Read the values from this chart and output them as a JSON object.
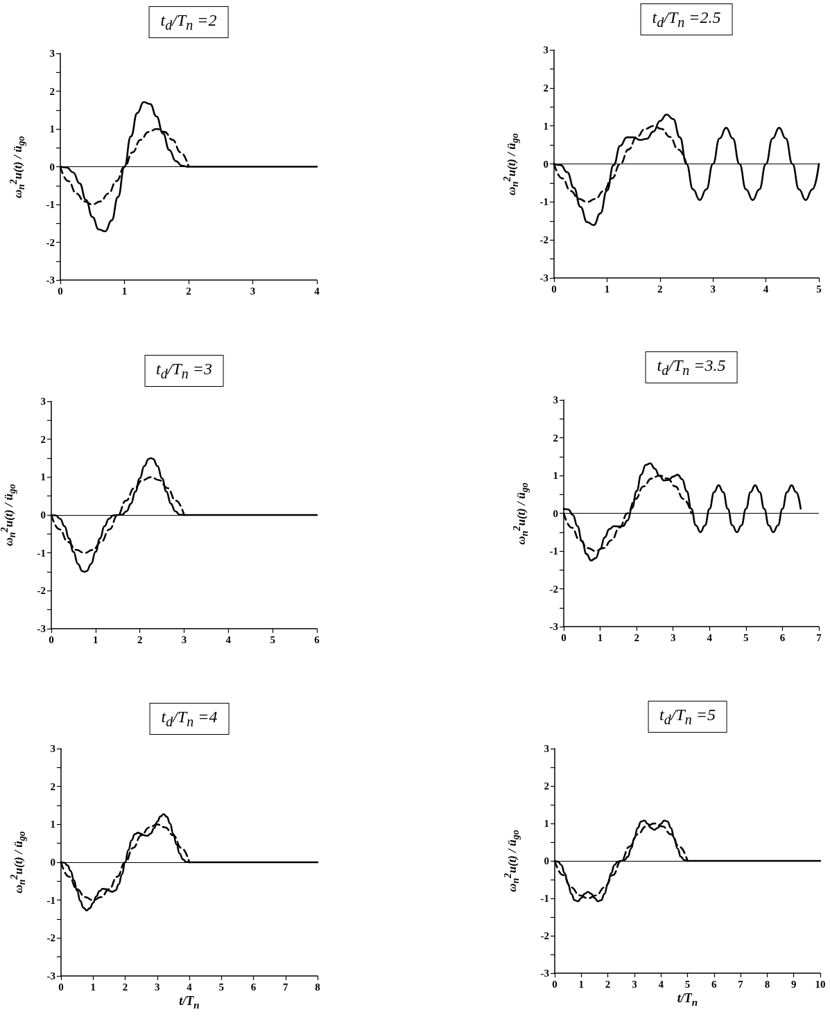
{
  "chart_data": [
    {
      "type": "line",
      "title": "t$_{d}$/T$_{n}$ =2",
      "ylabel": "ω$_{n}$$^{2}$u(t) / ü$_{go}$",
      "xlim": [
        0,
        4
      ],
      "xticks": [
        0,
        1,
        2,
        3,
        4
      ],
      "ylim": [
        -3,
        3
      ],
      "yticks": [
        -3,
        {
          "value": -2.5,
          "label": null
        },
        -2,
        {
          "value": -1.5,
          "label": null
        },
        -1,
        {
          "value": -0.5,
          "label": null
        },
        0,
        {
          "value": 0.5,
          "label": null
        },
        1,
        {
          "value": 1.5,
          "label": null
        },
        2,
        {
          "value": 2.5,
          "label": null
        },
        3
      ],
      "marker": "none",
      "ref_lines": [
        {
          "axis": "y",
          "value": 0
        }
      ],
      "series": [
        {
          "color": "#000000",
          "line_style": "solid",
          "x": [
            0,
            0.1,
            0.2,
            0.3,
            0.4,
            0.5,
            0.6,
            0.7,
            0.8,
            0.9,
            1,
            1.1,
            1.2,
            1.3,
            1.4,
            1.5,
            1.6,
            1.7,
            1.8,
            1.9,
            2,
            4
          ],
          "values": [
            0,
            -0.02,
            -0.15,
            -0.44,
            -0.88,
            -1.33,
            -1.66,
            -1.71,
            -1.42,
            -0.8,
            0,
            0.8,
            1.42,
            1.71,
            1.66,
            1.33,
            0.88,
            0.44,
            0.15,
            0.02,
            0,
            0
          ]
        },
        {
          "color": "#000000",
          "line_style": "dashed",
          "x": [
            0,
            0.125,
            0.25,
            0.375,
            0.5,
            0.625,
            0.75,
            0.875,
            1,
            1.125,
            1.25,
            1.375,
            1.5,
            1.625,
            1.75,
            1.875,
            2
          ],
          "values": [
            0,
            -0.38,
            -0.71,
            -0.92,
            -1,
            -0.92,
            -0.71,
            -0.38,
            0,
            0.38,
            0.71,
            0.92,
            1,
            0.92,
            0.71,
            0.38,
            0
          ]
        }
      ]
    },
    {
      "type": "line",
      "title": "t$_{d}$/T$_{n}$ =2.5",
      "ylabel": "ω$_{n}$$^{2}$u(t) / ü$_{go}$",
      "xlim": [
        0,
        5
      ],
      "xticks": [
        0,
        1,
        2,
        3,
        4,
        5
      ],
      "ylim": [
        -3,
        3
      ],
      "yticks": [
        -3,
        {
          "value": -2.5,
          "label": null
        },
        -2,
        {
          "value": -1.5,
          "label": null
        },
        -1,
        {
          "value": -0.5,
          "label": null
        },
        0,
        {
          "value": 0.5,
          "label": null
        },
        1,
        {
          "value": 1.5,
          "label": null
        },
        2,
        {
          "value": 2.5,
          "label": null
        },
        3
      ],
      "marker": "none",
      "ref_lines": [
        {
          "axis": "y",
          "value": 0
        }
      ],
      "series": [
        {
          "color": "#000000",
          "line_style": "solid",
          "x": [
            0,
            0.125,
            0.25,
            0.375,
            0.5,
            0.625,
            0.75,
            0.875,
            1,
            1.125,
            1.25,
            1.375,
            1.5,
            1.625,
            1.75,
            1.875,
            2,
            2.125,
            2.25,
            2.375,
            2.5,
            2.625,
            2.75,
            2.875,
            3,
            3.125,
            3.25,
            3.375,
            3.5,
            3.625,
            3.75,
            3.875,
            4,
            4.125,
            4.25,
            4.375,
            4.5,
            4.625,
            4.75,
            4.875,
            5
          ],
          "values": [
            0,
            -0.03,
            -0.22,
            -0.63,
            -1.13,
            -1.53,
            -1.61,
            -1.3,
            -0.7,
            -0.03,
            0.48,
            0.7,
            0.7,
            0.63,
            0.66,
            0.85,
            1.13,
            1.3,
            1.18,
            0.7,
            0,
            -0.67,
            -0.95,
            -0.67,
            0,
            0.67,
            0.95,
            0.67,
            0,
            -0.67,
            -0.95,
            -0.67,
            0,
            0.67,
            0.95,
            0.67,
            0,
            -0.67,
            -0.95,
            -0.67,
            0
          ]
        },
        {
          "color": "#000000",
          "line_style": "dashed",
          "x": [
            0,
            0.15625,
            0.3125,
            0.46875,
            0.625,
            0.78125,
            0.9375,
            1.09375,
            1.25,
            1.40625,
            1.5625,
            1.71875,
            1.875,
            2.03125,
            2.1875,
            2.34375,
            2.5
          ],
          "values": [
            0,
            -0.38,
            -0.71,
            -0.92,
            -1,
            -0.92,
            -0.71,
            -0.38,
            0,
            0.38,
            0.71,
            0.92,
            1,
            0.92,
            0.71,
            0.38,
            0
          ]
        }
      ]
    },
    {
      "type": "line",
      "title": "t$_{d}$/T$_{n}$ =3",
      "ylabel": "ω$_{n}$$^{2}$u(t) / ü$_{go}$",
      "xlim": [
        0,
        6
      ],
      "xticks": [
        0,
        1,
        2,
        3,
        4,
        5,
        6
      ],
      "ylim": [
        -3,
        3
      ],
      "yticks": [
        -3,
        {
          "value": -2.5,
          "label": null
        },
        -2,
        {
          "value": -1.5,
          "label": null
        },
        -1,
        {
          "value": -0.5,
          "label": null
        },
        0,
        {
          "value": 0.5,
          "label": null
        },
        1,
        {
          "value": 1.5,
          "label": null
        },
        2,
        {
          "value": 2.5,
          "label": null
        },
        3
      ],
      "marker": "none",
      "ref_lines": [
        {
          "axis": "y",
          "value": 0
        }
      ],
      "series": [
        {
          "color": "#000000",
          "line_style": "solid",
          "x": [
            0,
            0.1,
            0.2,
            0.3,
            0.4,
            0.5,
            0.6,
            0.7,
            0.75,
            0.8,
            0.9,
            1,
            1.1,
            1.2,
            1.3,
            1.4,
            1.5,
            1.6,
            1.7,
            1.8,
            1.9,
            2,
            2.1,
            2.2,
            2.25,
            2.3,
            2.4,
            2.5,
            2.6,
            2.7,
            2.8,
            2.9,
            3,
            6
          ],
          "values": [
            0,
            -0.01,
            -0.1,
            -0.3,
            -0.62,
            -0.97,
            -1.29,
            -1.48,
            -1.5,
            -1.48,
            -1.29,
            -0.97,
            -0.62,
            -0.3,
            -0.1,
            -0.01,
            0,
            0.01,
            0.1,
            0.3,
            0.62,
            0.97,
            1.29,
            1.48,
            1.5,
            1.48,
            1.29,
            0.97,
            0.62,
            0.3,
            0.1,
            0.01,
            0,
            0
          ]
        },
        {
          "color": "#000000",
          "line_style": "dashed",
          "x": [
            0,
            0.1875,
            0.375,
            0.5625,
            0.75,
            0.9375,
            1.125,
            1.3125,
            1.5,
            1.6875,
            1.875,
            2.0625,
            2.25,
            2.4375,
            2.625,
            2.8125,
            3
          ],
          "values": [
            0,
            -0.38,
            -0.71,
            -0.92,
            -1,
            -0.92,
            -0.71,
            -0.38,
            0,
            0.38,
            0.71,
            0.92,
            1,
            0.92,
            0.71,
            0.38,
            0
          ]
        }
      ]
    },
    {
      "type": "line",
      "title": "t$_{d}$/T$_{n}$ =3.5",
      "ylabel": "ω$_{n}$$^{2}$u(t) / ü$_{go}$",
      "xlim": [
        0,
        7
      ],
      "xticks": [
        0,
        1,
        2,
        3,
        4,
        5,
        6,
        7
      ],
      "ylim": [
        -3,
        3
      ],
      "yticks": [
        -3,
        {
          "value": -2.5,
          "label": null
        },
        -2,
        {
          "value": -1.5,
          "label": null
        },
        -1,
        {
          "value": -0.5,
          "label": null
        },
        0,
        {
          "value": 0.5,
          "label": null
        },
        1,
        {
          "value": 1.5,
          "label": null
        },
        2,
        {
          "value": 2.5,
          "label": null
        },
        3
      ],
      "marker": "none",
      "ref_lines": [
        {
          "axis": "y",
          "value": 0
        }
      ],
      "series": [
        {
          "color": "#000000",
          "line_style": "solid",
          "x": [
            0,
            0.125,
            0.25,
            0.375,
            0.5,
            0.625,
            0.75,
            0.875,
            1,
            1.125,
            1.25,
            1.375,
            1.5,
            1.625,
            1.75,
            1.875,
            2,
            2.125,
            2.25,
            2.375,
            2.5,
            2.625,
            2.75,
            2.875,
            3,
            3.125,
            3.25,
            3.375,
            3.5,
            3.625,
            3.75,
            3.875,
            4,
            4.125,
            4.25,
            4.375,
            4.5,
            4.625,
            4.75,
            4.875,
            5,
            5.125,
            5.25,
            5.375,
            5.5,
            5.625,
            5.75,
            5.875,
            6,
            6.125,
            6.25,
            6.375,
            6.5
          ],
          "values": [
            0.12,
            0.1,
            -0.04,
            -0.34,
            -0.73,
            -1.08,
            -1.25,
            -1.19,
            -0.94,
            -0.64,
            -0.42,
            -0.34,
            -0.35,
            -0.34,
            -0.19,
            0.14,
            0.59,
            1.02,
            1.28,
            1.32,
            1.18,
            0.99,
            0.87,
            0.88,
            0.97,
            1.02,
            0.9,
            0.58,
            0.12,
            -0.32,
            -0.5,
            -0.32,
            0.12,
            0.56,
            0.74,
            0.56,
            0.12,
            -0.32,
            -0.5,
            -0.32,
            0.12,
            0.56,
            0.74,
            0.56,
            0.12,
            -0.32,
            -0.5,
            -0.32,
            0.12,
            0.56,
            0.74,
            0.56,
            0.12
          ]
        },
        {
          "color": "#000000",
          "line_style": "dashed",
          "x": [
            0,
            0.21875,
            0.4375,
            0.65625,
            0.875,
            1.09375,
            1.3125,
            1.53125,
            1.75,
            1.96875,
            2.1875,
            2.40625,
            2.625,
            2.84375,
            3.0625,
            3.28125,
            3.5
          ],
          "values": [
            0,
            -0.38,
            -0.71,
            -0.92,
            -1,
            -0.92,
            -0.71,
            -0.38,
            0,
            0.38,
            0.71,
            0.92,
            1,
            0.92,
            0.71,
            0.38,
            0
          ]
        }
      ]
    },
    {
      "type": "line",
      "title": "t$_{d}$/T$_{n}$ =4",
      "ylabel": "ω$_{n}$$^{2}$u(t) / ü$_{go}$",
      "xlabel": "t/T$_{n}$",
      "xlim": [
        0,
        8
      ],
      "xticks": [
        0,
        1,
        2,
        3,
        4,
        5,
        6,
        7,
        8
      ],
      "ylim": [
        -3,
        3
      ],
      "yticks": [
        -3,
        {
          "value": -2.5,
          "label": null
        },
        -2,
        {
          "value": -1.5,
          "label": null
        },
        -1,
        {
          "value": -0.5,
          "label": null
        },
        0,
        {
          "value": 0.5,
          "label": null
        },
        1,
        {
          "value": 1.5,
          "label": null
        },
        2,
        {
          "value": 2.5,
          "label": null
        },
        3
      ],
      "marker": "none",
      "ref_lines": [
        {
          "axis": "y",
          "value": 0
        }
      ],
      "series": [
        {
          "color": "#000000",
          "line_style": "solid",
          "x": [
            0,
            0.1,
            0.2,
            0.3,
            0.4,
            0.5,
            0.6,
            0.7,
            0.8,
            0.9,
            1,
            1.1,
            1.2,
            1.3,
            1.4,
            1.5,
            1.6,
            1.7,
            1.8,
            1.9,
            2,
            2.1,
            2.2,
            2.3,
            2.4,
            2.5,
            2.6,
            2.7,
            2.8,
            2.9,
            3,
            3.1,
            3.2,
            3.3,
            3.4,
            3.5,
            3.6,
            3.7,
            3.8,
            3.9,
            4,
            8
          ],
          "values": [
            0,
            -0.01,
            -0.08,
            -0.23,
            -0.47,
            -0.75,
            -1.02,
            -1.2,
            -1.27,
            -1.21,
            -1.07,
            -0.9,
            -0.76,
            -0.7,
            -0.71,
            -0.75,
            -0.78,
            -0.74,
            -0.58,
            -0.32,
            0,
            0.32,
            0.58,
            0.74,
            0.78,
            0.75,
            0.71,
            0.7,
            0.76,
            0.9,
            1.07,
            1.21,
            1.27,
            1.2,
            1.02,
            0.75,
            0.47,
            0.23,
            0.08,
            0.01,
            0,
            0
          ]
        },
        {
          "color": "#000000",
          "line_style": "dashed",
          "x": [
            0,
            0.25,
            0.5,
            0.75,
            1,
            1.25,
            1.5,
            1.75,
            2,
            2.25,
            2.5,
            2.75,
            3,
            3.25,
            3.5,
            3.75,
            4
          ],
          "values": [
            0,
            -0.38,
            -0.71,
            -0.92,
            -1,
            -0.92,
            -0.71,
            -0.38,
            0,
            0.38,
            0.71,
            0.92,
            1,
            0.92,
            0.71,
            0.38,
            0
          ]
        }
      ]
    },
    {
      "type": "line",
      "title": "t$_{d}$/T$_{n}$ =5",
      "ylabel": "ω$_{n}$$^{2}$u(t) / ü$_{go}$",
      "xlabel": "t/T$_{n}$",
      "xlim": [
        0,
        10
      ],
      "xticks": [
        0,
        1,
        2,
        3,
        4,
        5,
        6,
        7,
        8,
        9,
        10
      ],
      "ylim": [
        -3,
        3
      ],
      "yticks": [
        -3,
        {
          "value": -2.5,
          "label": null
        },
        -2,
        {
          "value": -1.5,
          "label": null
        },
        -1,
        {
          "value": -0.5,
          "label": null
        },
        0,
        {
          "value": 0.5,
          "label": null
        },
        1,
        {
          "value": 1.5,
          "label": null
        },
        2,
        {
          "value": 2.5,
          "label": null
        },
        3
      ],
      "marker": "none",
      "ref_lines": [
        {
          "axis": "y",
          "value": 0
        }
      ],
      "series": [
        {
          "color": "#000000",
          "line_style": "solid",
          "x": [
            0,
            0.125,
            0.25,
            0.375,
            0.5,
            0.625,
            0.75,
            0.875,
            1,
            1.125,
            1.25,
            1.375,
            1.5,
            1.625,
            1.75,
            1.875,
            2,
            2.125,
            2.25,
            2.375,
            2.5,
            2.625,
            2.75,
            2.875,
            3,
            3.125,
            3.25,
            3.375,
            3.5,
            3.625,
            3.75,
            3.875,
            4,
            4.125,
            4.25,
            4.375,
            4.5,
            4.625,
            4.75,
            4.875,
            5,
            10
          ],
          "values": [
            0,
            -0.02,
            -0.11,
            -0.33,
            -0.61,
            -0.88,
            -1.05,
            -1.08,
            -0.99,
            -0.88,
            -0.83,
            -0.88,
            -0.99,
            -1.08,
            -1.05,
            -0.88,
            -0.61,
            -0.33,
            -0.11,
            -0.02,
            0,
            0.02,
            0.11,
            0.33,
            0.61,
            0.88,
            1.05,
            1.08,
            0.99,
            0.88,
            0.83,
            0.88,
            0.99,
            1.08,
            1.05,
            0.88,
            0.61,
            0.33,
            0.11,
            0.02,
            0,
            0
          ]
        },
        {
          "color": "#000000",
          "line_style": "dashed",
          "x": [
            0,
            0.3125,
            0.625,
            0.9375,
            1.25,
            1.5625,
            1.875,
            2.1875,
            2.5,
            2.8125,
            3.125,
            3.4375,
            3.75,
            4.0625,
            4.375,
            4.6875,
            5
          ],
          "values": [
            0,
            -0.38,
            -0.71,
            -0.92,
            -1,
            -0.92,
            -0.71,
            -0.38,
            0,
            0.38,
            0.71,
            0.92,
            1,
            0.92,
            0.71,
            0.38,
            0
          ]
        }
      ]
    }
  ]
}
